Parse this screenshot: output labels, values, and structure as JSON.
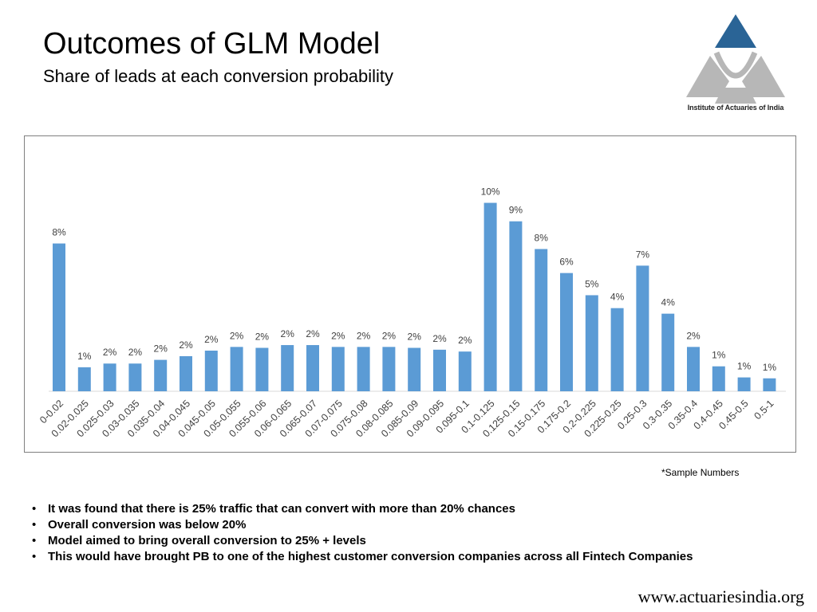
{
  "header": {
    "title": "Outcomes of GLM Model",
    "subtitle": "Share of leads at each conversion probability"
  },
  "logo": {
    "name": "Institute of Actuaries of India",
    "colors": {
      "top": "#2A6496",
      "sides": "#B7B7B7"
    }
  },
  "chart_data": {
    "type": "bar",
    "title": "Share of leads at each conversion probability",
    "xlabel": "",
    "ylabel": "",
    "ylim": [
      0,
      11
    ],
    "grid": false,
    "bar_color": "#5B9BD5",
    "categories": [
      "0-0.02",
      "0.02-0.025",
      "0.025-0.03",
      "0.03-0.035",
      "0.035-0.04",
      "0.04-0.045",
      "0.045-0.05",
      "0.05-0.055",
      "0.055-0.06",
      "0.06-0.065",
      "0.065-0.07",
      "0.07-0.075",
      "0.075-0.08",
      "0.08-0.085",
      "0.085-0.09",
      "0.09-0.095",
      "0.095-0.1",
      "0.1-0.125",
      "0.125-0.15",
      "0.15-0.175",
      "0.175-0.2",
      "0.2-0.225",
      "0.225-0.25",
      "0.25-0.3",
      "0.3-0.35",
      "0.35-0.4",
      "0.4-0.45",
      "0.45-0.5",
      "0.5-1"
    ],
    "values": [
      8.0,
      1.3,
      1.5,
      1.5,
      1.7,
      1.9,
      2.2,
      2.4,
      2.35,
      2.5,
      2.5,
      2.4,
      2.4,
      2.4,
      2.35,
      2.25,
      2.15,
      10.2,
      9.2,
      7.7,
      6.4,
      5.2,
      4.5,
      6.8,
      4.2,
      2.4,
      1.35,
      0.75,
      0.7
    ],
    "labels": [
      "8%",
      "1%",
      "2%",
      "2%",
      "2%",
      "2%",
      "2%",
      "2%",
      "2%",
      "2%",
      "2%",
      "2%",
      "2%",
      "2%",
      "2%",
      "2%",
      "2%",
      "10%",
      "9%",
      "8%",
      "6%",
      "5%",
      "4%",
      "7%",
      "4%",
      "2%",
      "1%",
      "1%",
      "1%"
    ]
  },
  "note": "*Sample Numbers",
  "bullets": [
    "It was found that there is 25% traffic that can convert with more than 20% chances",
    "Overall conversion was below 20%",
    "Model aimed to bring overall conversion to 25% + levels",
    "This would have brought PB to one of the highest customer conversion companies across all Fintech Companies"
  ],
  "footer": "www.actuariesindia.org"
}
